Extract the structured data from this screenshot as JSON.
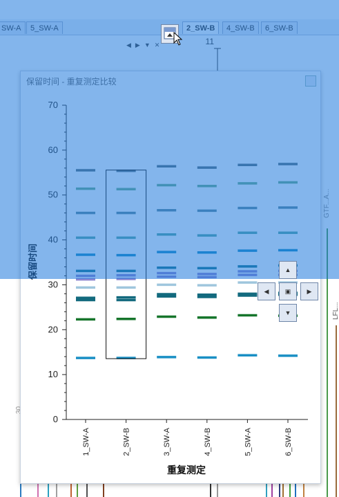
{
  "tabs": [
    "SW-A",
    "5_SW-A",
    "2_SW-B",
    "4_SW-B",
    "6_SW-B"
  ],
  "active_tab": "2_SW-B",
  "background_chart": {
    "y_tick": "11",
    "series_labels": [
      "GTF...A...",
      "LFL..."
    ],
    "side_tick": "30"
  },
  "dialog": {
    "title": "保留时间 - 重复测定比较"
  },
  "chart_data": {
    "type": "scatter",
    "title": "",
    "xlabel": "重复测定",
    "ylabel": "保留时间",
    "ylim": [
      0,
      70
    ],
    "yticks": [
      0,
      10,
      20,
      30,
      40,
      50,
      60,
      70
    ],
    "categories": [
      "1_SW-A",
      "2_SW-B",
      "3_SW-A",
      "4_SW-B",
      "5_SW-A",
      "6_SW-B"
    ],
    "marker": "dash",
    "selected_category": "2_SW-B",
    "series": [
      {
        "color": "#1a8fc4",
        "values": [
          13.7,
          13.7,
          13.9,
          13.8,
          14.3,
          14.2
        ]
      },
      {
        "color": "#16752b",
        "values": [
          22.3,
          22.4,
          22.9,
          22.7,
          23.2,
          23.1
        ]
      },
      {
        "color": "#136a7e",
        "values": [
          26.6,
          26.6,
          27.4,
          27.3,
          27.6,
          27.8
        ]
      },
      {
        "color": "#136a7e",
        "values": [
          27.1,
          27.2,
          27.9,
          27.8,
          28.0,
          28.2
        ]
      },
      {
        "color": "#9fc6dd",
        "values": [
          29.4,
          29.4,
          30.0,
          29.9,
          30.5,
          30.5
        ]
      },
      {
        "color": "#8d86d0",
        "values": [
          31.2,
          31.3,
          31.8,
          31.7,
          32.2,
          32.2
        ]
      },
      {
        "color": "#8d86d0",
        "values": [
          32.0,
          32.1,
          32.6,
          32.4,
          33.0,
          33.1
        ]
      },
      {
        "color": "#17798e",
        "values": [
          33.1,
          33.1,
          33.8,
          33.7,
          34.1,
          34.3
        ]
      },
      {
        "color": "#1a8fc4",
        "values": [
          36.7,
          36.6,
          37.3,
          37.2,
          37.6,
          37.7
        ]
      },
      {
        "color": "#5aa9a2",
        "values": [
          40.5,
          40.5,
          41.2,
          41.0,
          41.6,
          41.6
        ]
      },
      {
        "color": "#5f8b9a",
        "values": [
          46.0,
          46.0,
          46.6,
          46.5,
          47.1,
          47.2
        ]
      },
      {
        "color": "#6fb08a",
        "values": [
          51.4,
          51.3,
          52.2,
          52.0,
          52.6,
          52.8
        ]
      },
      {
        "color": "#5a6f78",
        "values": [
          55.5,
          55.4,
          56.4,
          56.1,
          56.7,
          56.9
        ]
      }
    ]
  }
}
